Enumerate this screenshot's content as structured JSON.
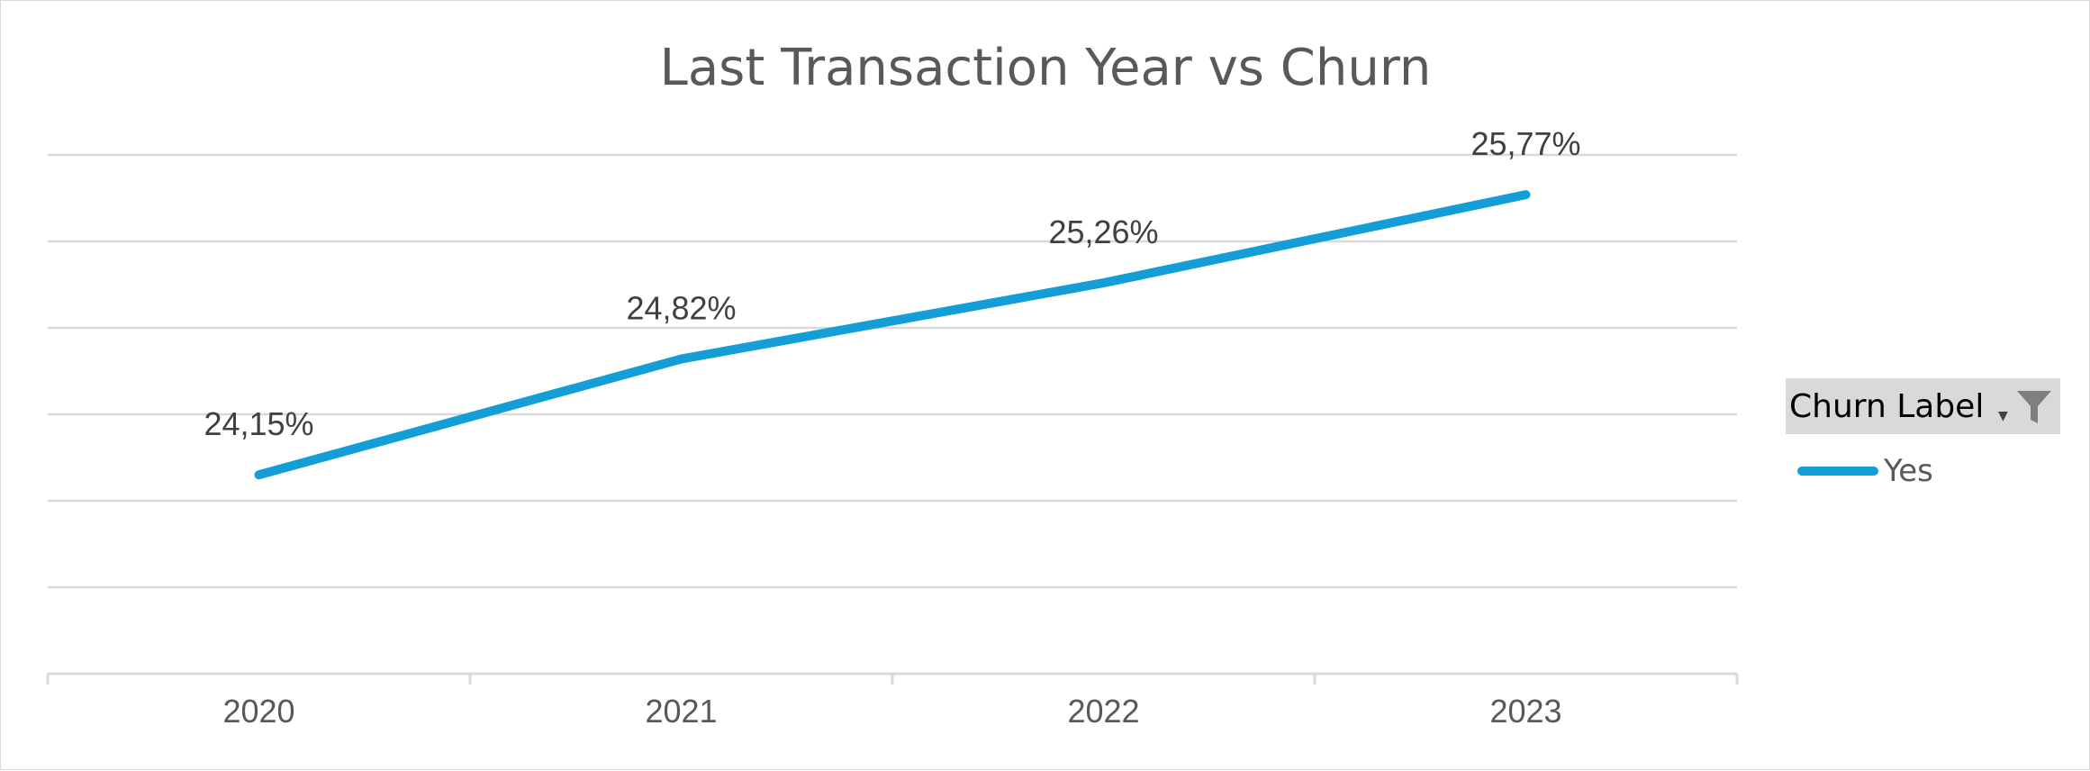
{
  "chart_data": {
    "type": "line",
    "title": "Last Transaction Year vs Churn",
    "xlabel": "",
    "ylabel": "",
    "categories": [
      "2020",
      "2021",
      "2022",
      "2023"
    ],
    "series": [
      {
        "name": "Yes",
        "values": [
          24.15,
          24.82,
          25.26,
          25.77
        ],
        "labels": [
          "24,15%",
          "24,82%",
          "25,26%",
          "25,77%"
        ],
        "color": "#149ED8"
      }
    ],
    "ylim": [
      23.0,
      26.0
    ],
    "y_gridline_step": 0.5,
    "y_tick_labels_shown": false,
    "grid": true,
    "legend": {
      "placement": "right",
      "header": "Churn Label",
      "header_icon": "filter-icon",
      "header_dropdown_icon": "dropdown-arrow-icon"
    }
  },
  "colors": {
    "series": "#149ED8",
    "gridline": "#D9D9D9",
    "title": "#595959",
    "legend_header_bg": "#D9D9D9",
    "filter_icon": "#7F7F7F"
  }
}
